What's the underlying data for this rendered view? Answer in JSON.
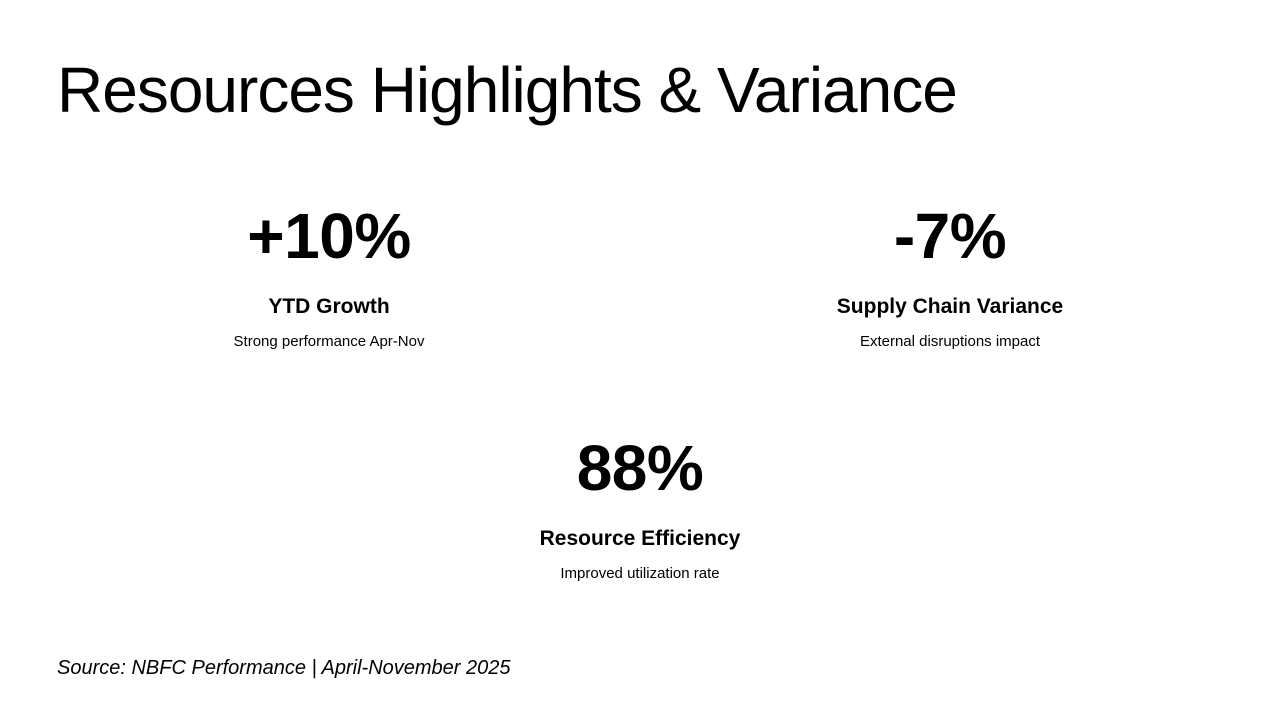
{
  "slide": {
    "title": "Resources Highlights & Variance",
    "stats": [
      {
        "value": "+10%",
        "label": "YTD Growth",
        "description": "Strong performance Apr-Nov"
      },
      {
        "value": "-7%",
        "label": "Supply Chain Variance",
        "description": "External disruptions impact"
      },
      {
        "value": "88%",
        "label": "Resource Efficiency",
        "description": "Improved utilization rate"
      }
    ],
    "source": "Source: NBFC Performance | April-November 2025"
  }
}
